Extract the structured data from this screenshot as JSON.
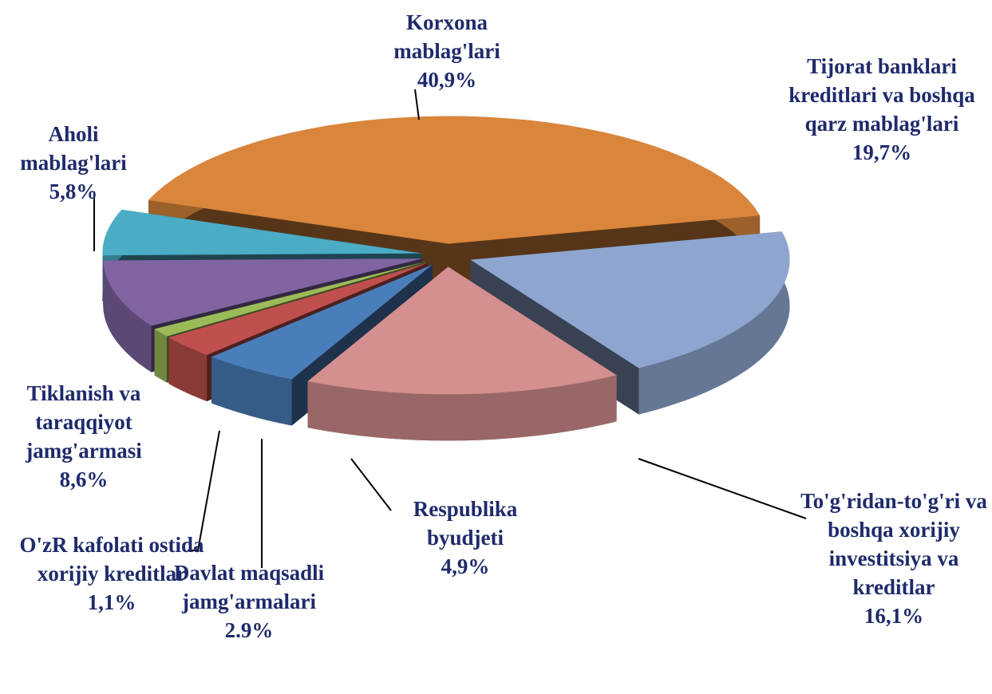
{
  "chart_data": {
    "type": "pie",
    "categories": [
      "Korxona mablag'lari",
      "Tijorat banklari kreditlari va boshqa qarz mablag'lari",
      "To'g'ridan-to'g'ri va boshqa xorijiy investitsiya va kreditlar",
      "Respublika byudjeti",
      "Davlat maqsadli jamg'armalari",
      "O'zR kafolati ostida xorijiy kreditlar",
      "Tiklanish va taraqqiyot jamg'armasi",
      "Aholi mablag'lari"
    ],
    "values": [
      40.9,
      19.7,
      16.1,
      4.9,
      2.9,
      1.1,
      8.6,
      5.8
    ],
    "value_labels": [
      "40,9%",
      "19,7%",
      "16,1%",
      "4,9%",
      "2.9%",
      "1,1%",
      "8,6%",
      "5,8%"
    ],
    "colors": [
      "#d9853b",
      "#8ea5cf",
      "#d48f8f",
      "#4a7ebb",
      "#c0504d",
      "#9bbb59",
      "#8064a2",
      "#4bacc6"
    ]
  }
}
